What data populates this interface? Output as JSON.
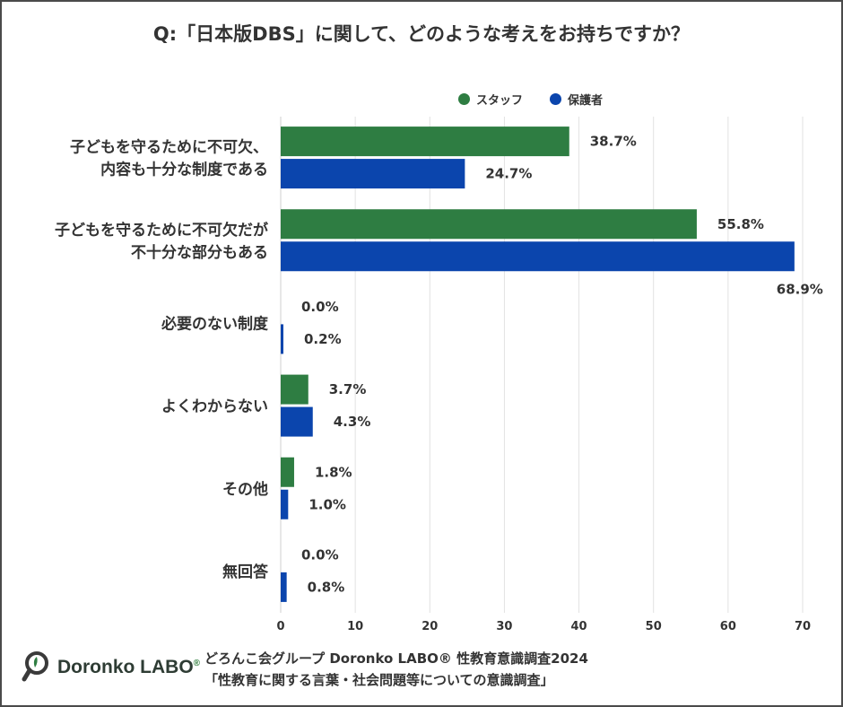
{
  "title": "Q:「日本版DBS」に関して、どのような考えをお持ちですか？",
  "colors": {
    "staff": "#2e7d42",
    "parent": "#0b45ad",
    "grid": "#e2e2e2",
    "text": "#333333"
  },
  "chart_data": {
    "type": "bar",
    "orientation": "horizontal",
    "categories": [
      [
        "子どもを守るために不可欠、",
        "内容も十分な制度である"
      ],
      [
        "子どもを守るために不可欠だが",
        "不十分な部分もある"
      ],
      [
        "必要のない制度"
      ],
      [
        "よくわからない"
      ],
      [
        "その他"
      ],
      [
        "無回答"
      ]
    ],
    "series": [
      {
        "name": "スタッフ",
        "values": [
          38.7,
          55.8,
          0.0,
          3.7,
          1.8,
          0.0
        ],
        "labels": [
          "38.7%",
          "55.8%",
          "0.0%",
          "3.7%",
          "1.8%",
          "0.0%"
        ]
      },
      {
        "name": "保護者",
        "values": [
          24.7,
          68.9,
          0.2,
          4.3,
          1.0,
          0.8
        ],
        "labels": [
          "24.7%",
          "68.9%",
          "0.2%",
          "4.3%",
          "1.0%",
          "0.8%"
        ]
      }
    ],
    "xlim": [
      0,
      70
    ],
    "xticks": [
      "0",
      "10",
      "20",
      "30",
      "40",
      "50",
      "60",
      "70"
    ],
    "legend_position": "top-right",
    "grid": true
  },
  "footer": {
    "line1": "どろんこ会グループ Doronko LABO® 性教育意識調査2024",
    "line2": "「性教育に関する言葉・社会問題等についての意識調査」"
  },
  "logo": {
    "text": "Doronko LABO",
    "mark": "®"
  }
}
